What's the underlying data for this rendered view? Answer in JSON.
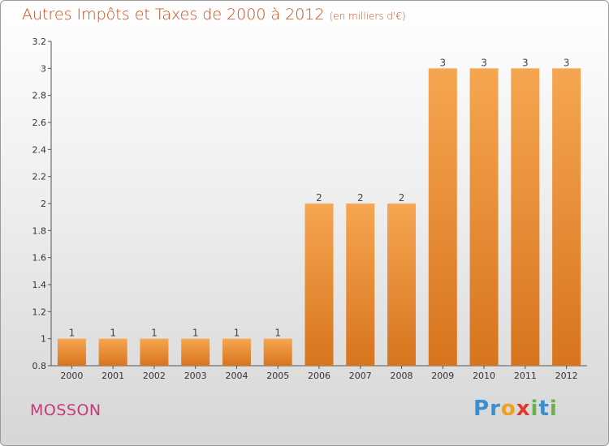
{
  "title": "Autres Impôts et Taxes de 2000 à 2012",
  "subtitle": "(en milliers d'€)",
  "commune": "MOSSON",
  "logo": {
    "text": "Proxiti",
    "letters": [
      {
        "ch": "P",
        "color": "#3a8fd0"
      },
      {
        "ch": "r",
        "color": "#3a8fd0"
      },
      {
        "ch": "o",
        "color": "#f0a020"
      },
      {
        "ch": "x",
        "color": "#e23a2a"
      },
      {
        "ch": "i",
        "color": "#6ab04c"
      },
      {
        "ch": "t",
        "color": "#3a8fd0"
      },
      {
        "ch": "i",
        "color": "#6ab04c"
      }
    ]
  },
  "colors": {
    "bar_top": "#f6a650",
    "bar_bottom": "#d8741e",
    "axis_text": "#333333",
    "grid": "#cccccc"
  },
  "chart_data": {
    "type": "bar",
    "categories": [
      "2000",
      "2001",
      "2002",
      "2003",
      "2004",
      "2005",
      "2006",
      "2007",
      "2008",
      "2009",
      "2010",
      "2011",
      "2012"
    ],
    "values": [
      1,
      1,
      1,
      1,
      1,
      1,
      2,
      2,
      2,
      3,
      3,
      3,
      3
    ],
    "data_labels": [
      "1",
      "1",
      "1",
      "1",
      "1",
      "1",
      "2",
      "2",
      "2",
      "3",
      "3",
      "3",
      "3"
    ],
    "ylim": [
      0.8,
      3.2
    ],
    "yticks": [
      0.8,
      1,
      1.2,
      1.4,
      1.6,
      1.8,
      2,
      2.2,
      2.4,
      2.6,
      2.8,
      3,
      3.2
    ],
    "ytick_labels": [
      "0.8",
      "1",
      "1.2",
      "1.4",
      "1.6",
      "1.8",
      "2",
      "2.2",
      "2.4",
      "2.6",
      "2.8",
      "3",
      "3.2"
    ],
    "grid": true
  }
}
